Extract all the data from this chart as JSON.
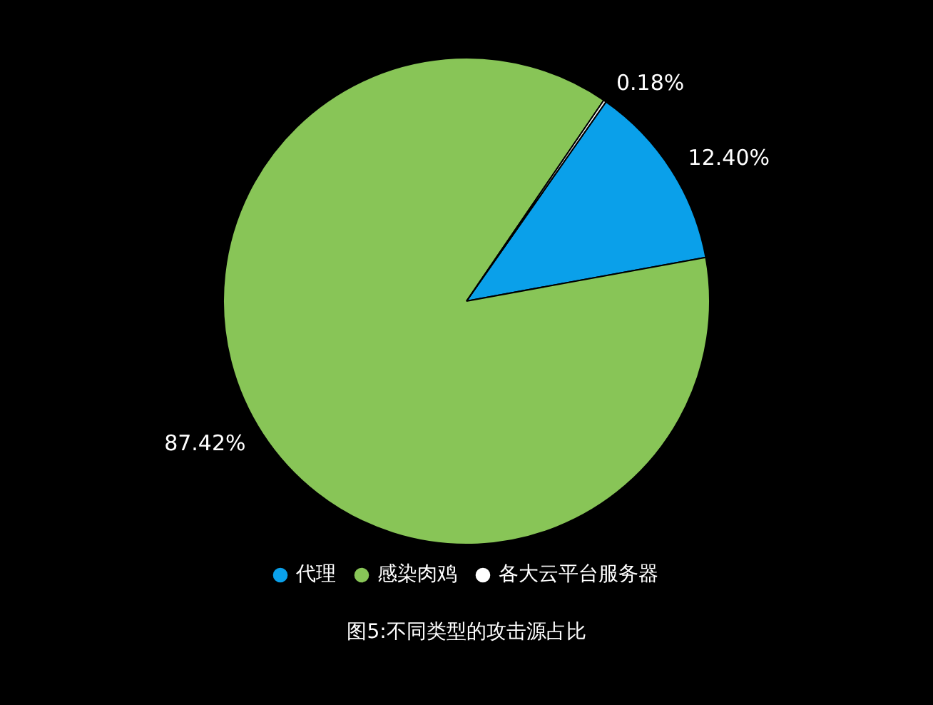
{
  "chart_data": {
    "type": "pie",
    "categories": [
      "代理",
      "感染肉鸡",
      "各大云平台服务器"
    ],
    "values": [
      12.4,
      87.42,
      0.18
    ],
    "colors": [
      "#0aa0ea",
      "#88c557",
      "#ffffff"
    ],
    "value_labels": [
      "12.40%",
      "87.42%",
      "0.18%"
    ],
    "legend": "bottom",
    "annotations": [
      "图5:不同类型的攻击源占比"
    ]
  }
}
